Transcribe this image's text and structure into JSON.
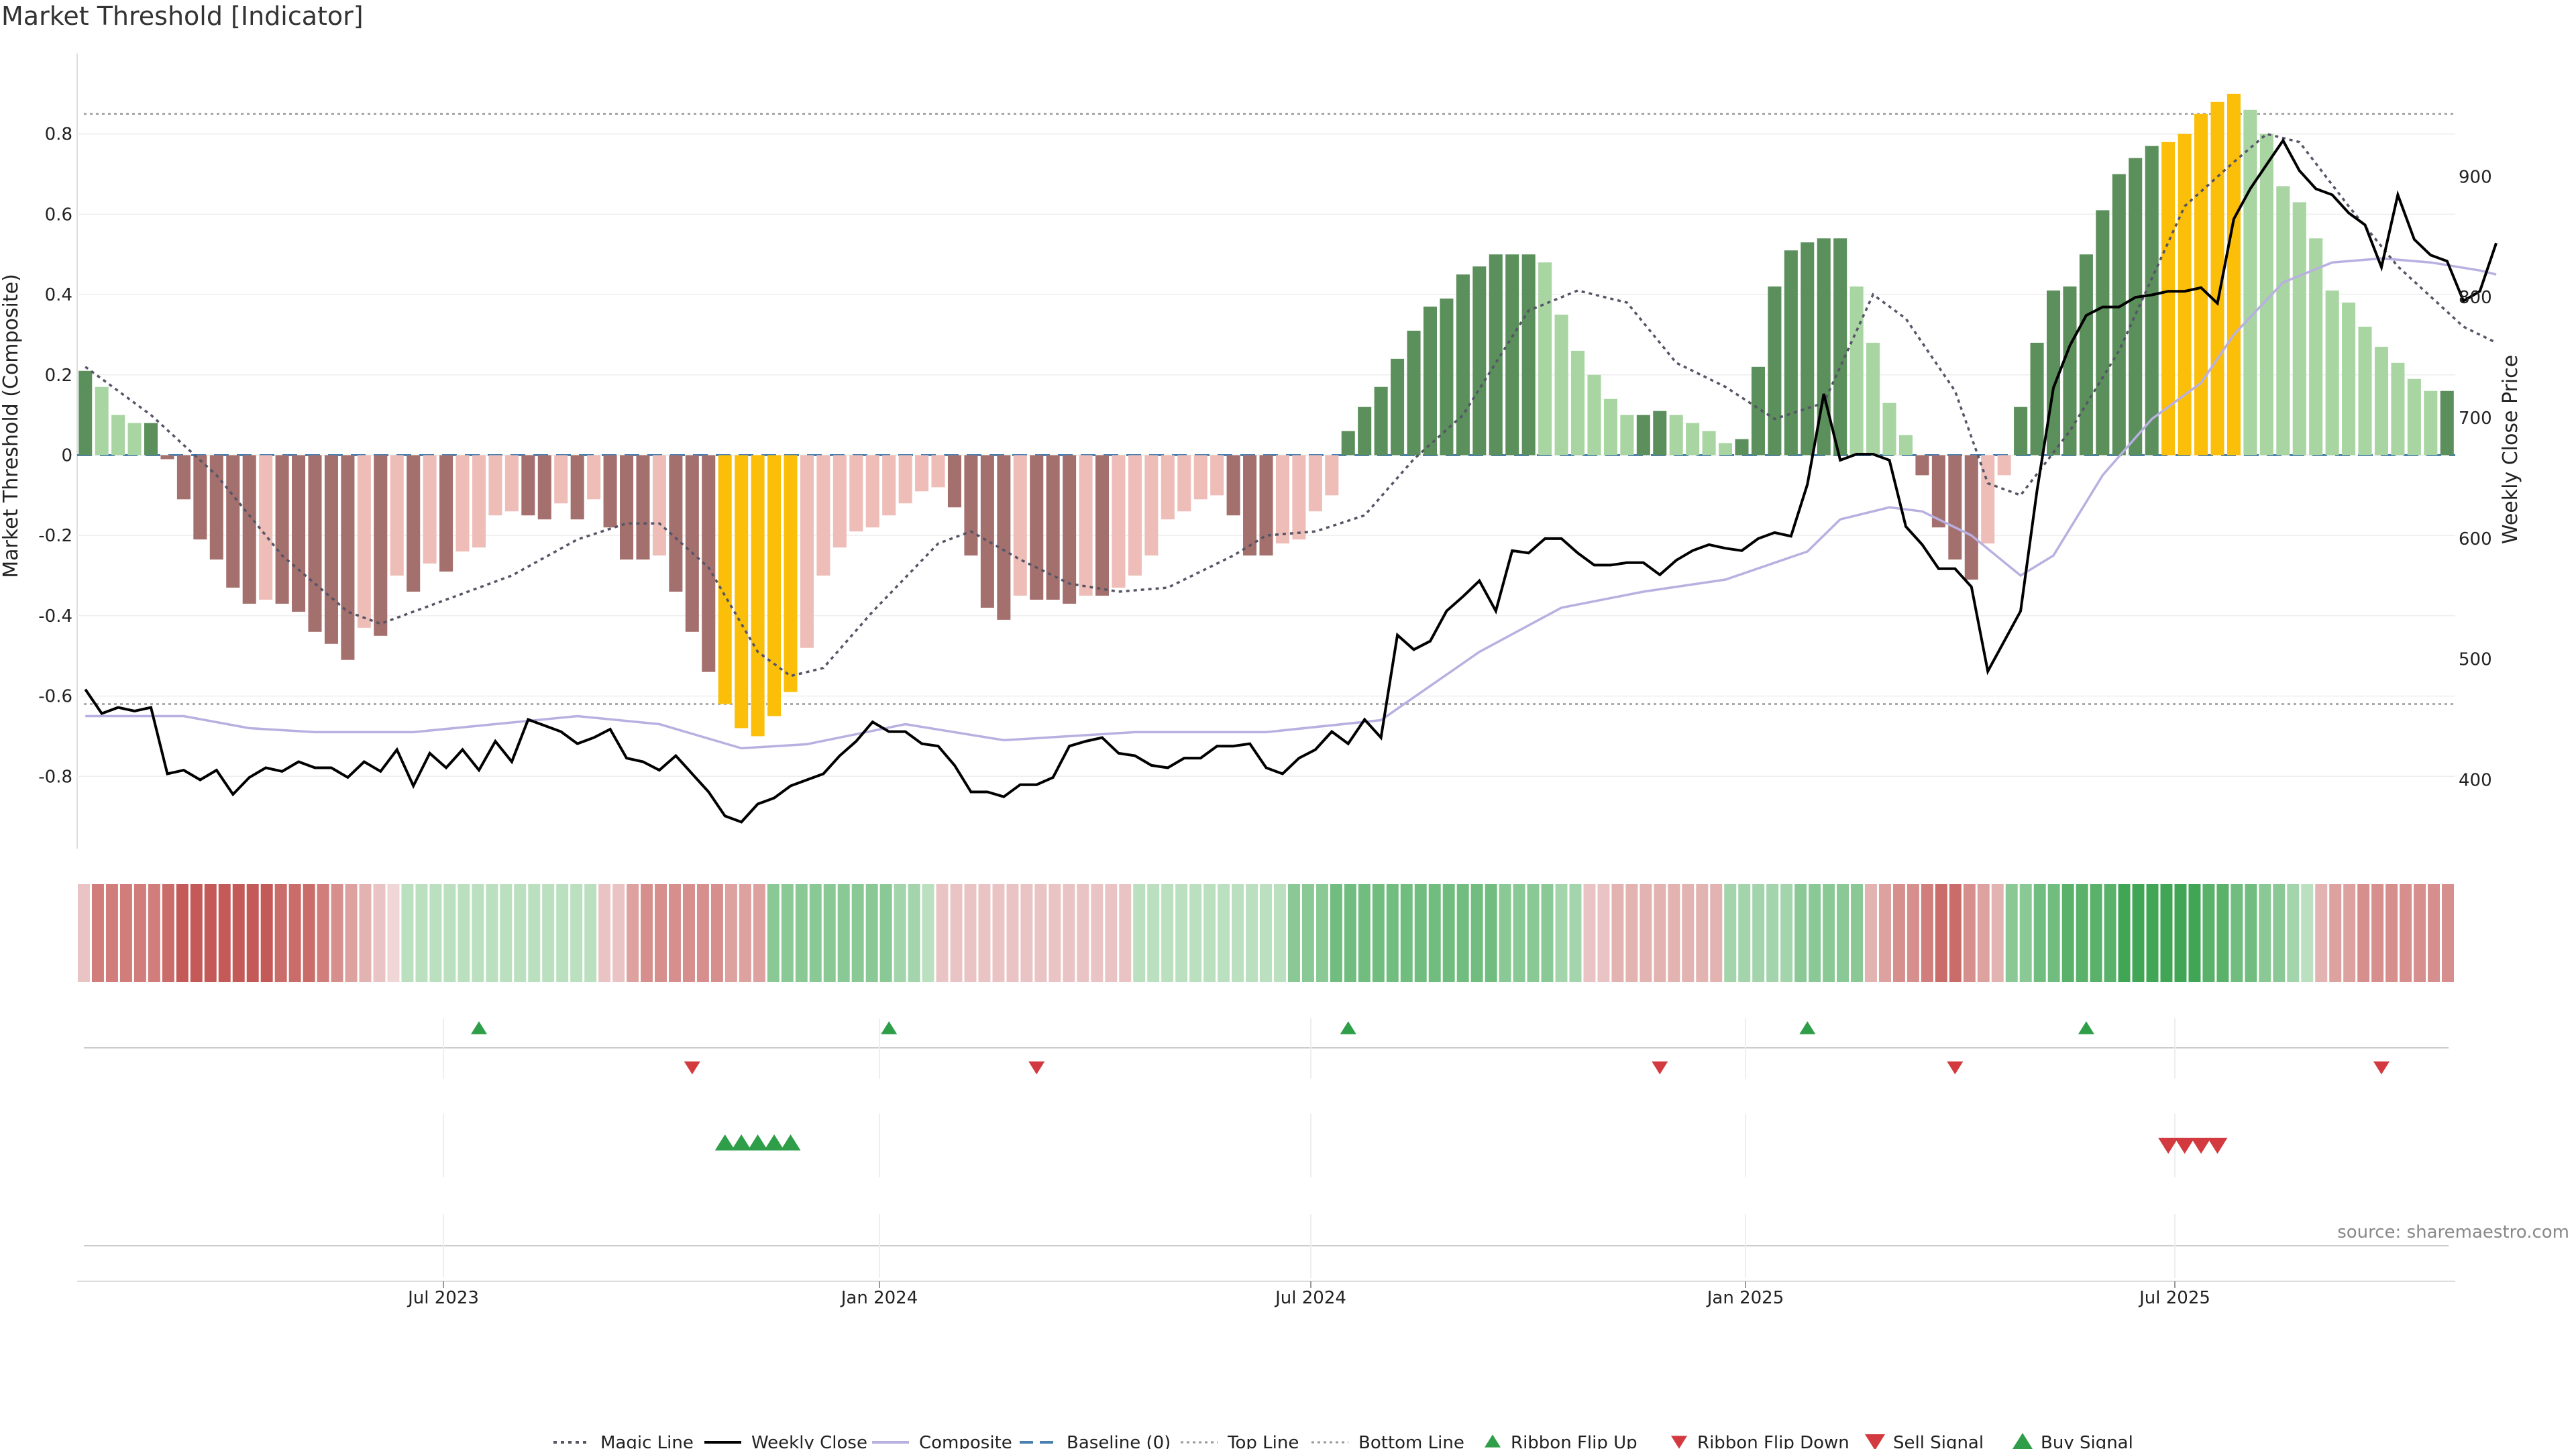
{
  "title": "Market Threshold [Indicator]",
  "source": "source: sharemaestro.com",
  "colors": {
    "bar_green_strong": "#5b8f5b",
    "bar_green_light": "#a8d5a2",
    "bar_red_strong": "#a4706e",
    "bar_red_light": "#eebdb8",
    "bar_extreme": "#fbbf0a",
    "weekly_close": "#000000",
    "composite": "#b8b0e0",
    "magic_line": "#555566",
    "baseline": "#4a80b0",
    "buy": "#2e9e48",
    "sell": "#d33a40"
  },
  "chart_data": {
    "type": "bar",
    "title": "Market Threshold [Indicator]",
    "ylabel": "Market Threshold (Composite)",
    "y2label": "Weekly Close Price",
    "ylim": [
      -0.98,
      1.0
    ],
    "y2lim": [
      343,
      1002
    ],
    "yticks": [
      "0.8",
      "0.6",
      "0.4",
      "0.2",
      "0",
      "-0.2",
      "-0.4",
      "-0.6",
      "-0.8"
    ],
    "y2ticks": [
      "900",
      "800",
      "700",
      "600",
      "500",
      "400"
    ],
    "xticks": [
      "Jul 2023",
      "Jan 2024",
      "Jul 2024",
      "Jan 2025",
      "Jul 2025"
    ],
    "top_line": 0.85,
    "bottom_line": -0.62,
    "composite_bars": [
      0.21,
      0.17,
      0.1,
      0.08,
      0.08,
      -0.01,
      -0.11,
      -0.21,
      -0.26,
      -0.33,
      -0.37,
      -0.36,
      -0.37,
      -0.39,
      -0.44,
      -0.47,
      -0.51,
      -0.43,
      -0.45,
      -0.3,
      -0.34,
      -0.27,
      -0.29,
      -0.24,
      -0.23,
      -0.15,
      -0.14,
      -0.15,
      -0.16,
      -0.12,
      -0.16,
      -0.11,
      -0.18,
      -0.26,
      -0.26,
      -0.25,
      -0.34,
      -0.44,
      -0.54,
      -0.62,
      -0.68,
      -0.7,
      -0.65,
      -0.59,
      -0.48,
      -0.3,
      -0.23,
      -0.19,
      -0.18,
      -0.15,
      -0.12,
      -0.09,
      -0.08,
      -0.13,
      -0.25,
      -0.38,
      -0.41,
      -0.35,
      -0.36,
      -0.36,
      -0.37,
      -0.35,
      -0.35,
      -0.33,
      -0.3,
      -0.25,
      -0.16,
      -0.14,
      -0.11,
      -0.1,
      -0.15,
      -0.25,
      -0.25,
      -0.22,
      -0.21,
      -0.14,
      -0.1,
      0.06,
      0.12,
      0.17,
      0.24,
      0.31,
      0.37,
      0.39,
      0.45,
      0.47,
      0.5,
      0.5,
      0.5,
      0.48,
      0.35,
      0.26,
      0.2,
      0.14,
      0.1,
      0.1,
      0.11,
      0.1,
      0.08,
      0.06,
      0.03,
      0.04,
      0.22,
      0.42,
      0.51,
      0.53,
      0.54,
      0.54,
      0.42,
      0.28,
      0.13,
      0.05,
      -0.05,
      -0.18,
      -0.26,
      -0.31,
      -0.22,
      -0.05,
      0.12,
      0.28,
      0.41,
      0.42,
      0.5,
      0.61,
      0.7,
      0.74,
      0.77,
      0.78,
      0.8,
      0.85,
      0.88,
      0.9,
      0.86,
      0.8,
      0.67,
      0.63,
      0.54,
      0.41,
      0.38,
      0.32,
      0.27,
      0.23,
      0.19,
      0.16,
      0.16
    ],
    "extreme_ranges": [
      [
        39,
        43
      ],
      [
        127,
        131
      ]
    ],
    "ribbon_scores": [
      -0.2,
      -0.6,
      -0.6,
      -0.6,
      -0.6,
      -0.6,
      -0.7,
      -0.8,
      -0.8,
      -0.8,
      -0.8,
      -0.8,
      -0.8,
      -0.8,
      -0.7,
      -0.7,
      -0.7,
      -0.6,
      -0.5,
      -0.4,
      -0.3,
      -0.2,
      -0.1,
      0.3,
      0.3,
      0.3,
      0.3,
      0.3,
      0.3,
      0.3,
      0.3,
      0.3,
      0.3,
      0.3,
      0.3,
      0.3,
      0.3,
      -0.2,
      -0.2,
      -0.4,
      -0.5,
      -0.5,
      -0.5,
      -0.5,
      -0.5,
      -0.5,
      -0.4,
      -0.4,
      -0.4,
      0.5,
      0.5,
      0.5,
      0.5,
      0.5,
      0.5,
      0.5,
      0.5,
      0.5,
      0.4,
      0.4,
      0.3,
      -0.2,
      -0.2,
      -0.2,
      -0.2,
      -0.2,
      -0.2,
      -0.2,
      -0.2,
      -0.2,
      -0.2,
      -0.2,
      -0.2,
      -0.2,
      -0.2,
      0.3,
      0.3,
      0.3,
      0.3,
      0.3,
      0.3,
      0.3,
      0.3,
      0.3,
      0.3,
      0.3,
      0.5,
      0.5,
      0.5,
      0.6,
      0.6,
      0.6,
      0.6,
      0.6,
      0.6,
      0.6,
      0.6,
      0.6,
      0.6,
      0.6,
      0.6,
      0.5,
      0.5,
      0.5,
      0.5,
      0.4,
      0.4,
      -0.2,
      -0.2,
      -0.3,
      -0.3,
      -0.3,
      -0.3,
      -0.3,
      -0.3,
      -0.3,
      -0.3,
      0.4,
      0.4,
      0.4,
      0.4,
      0.4,
      0.5,
      0.5,
      0.5,
      0.5,
      0.5,
      -0.3,
      -0.4,
      -0.5,
      -0.5,
      -0.6,
      -0.7,
      -0.7,
      -0.5,
      -0.4,
      -0.3,
      0.5,
      0.5,
      0.6,
      0.6,
      0.7,
      0.7,
      0.7,
      0.7,
      0.8,
      0.8,
      0.8,
      0.8,
      0.8,
      0.8,
      0.7,
      0.7,
      0.6,
      0.6,
      0.5,
      0.5,
      0.4,
      0.3,
      -0.3,
      -0.4,
      -0.4,
      -0.5,
      -0.5,
      -0.5,
      -0.5,
      -0.5,
      -0.5,
      -0.5
    ],
    "ribbon_flip_up": [
      24,
      49,
      77,
      105,
      122
    ],
    "ribbon_flip_down": [
      37,
      58,
      96,
      114,
      140
    ],
    "buy_signals": [
      39,
      40,
      41,
      42,
      43
    ],
    "sell_signals": [
      127,
      128,
      129,
      130
    ],
    "weekly_close": [
      [
        0.5,
        475
      ],
      [
        1.5,
        455
      ],
      [
        2.5,
        460
      ],
      [
        3.5,
        457
      ],
      [
        4.5,
        460
      ],
      [
        5.5,
        405
      ],
      [
        6.5,
        408
      ],
      [
        7.5,
        400
      ],
      [
        8.5,
        408
      ],
      [
        9.5,
        388
      ],
      [
        10.5,
        402
      ],
      [
        11.5,
        410
      ],
      [
        12.5,
        407
      ],
      [
        13.5,
        415
      ],
      [
        14.5,
        410
      ],
      [
        15.5,
        410
      ],
      [
        16.5,
        402
      ],
      [
        17.5,
        415
      ],
      [
        18.5,
        407
      ],
      [
        19.5,
        425
      ],
      [
        20.5,
        395
      ],
      [
        21.5,
        422
      ],
      [
        22.5,
        410
      ],
      [
        23.5,
        425
      ],
      [
        24.5,
        408
      ],
      [
        25.5,
        432
      ],
      [
        26.5,
        415
      ],
      [
        27.5,
        450
      ],
      [
        28.5,
        445
      ],
      [
        29.5,
        440
      ],
      [
        30.5,
        430
      ],
      [
        31.5,
        435
      ],
      [
        32.5,
        442
      ],
      [
        33.5,
        418
      ],
      [
        34.5,
        415
      ],
      [
        35.5,
        408
      ],
      [
        36.5,
        420
      ],
      [
        37.5,
        405
      ],
      [
        38.5,
        390
      ],
      [
        39.5,
        370
      ],
      [
        40.5,
        365
      ],
      [
        41.5,
        380
      ],
      [
        42.5,
        385
      ],
      [
        43.5,
        395
      ],
      [
        44.5,
        400
      ],
      [
        45.5,
        405
      ],
      [
        46.5,
        420
      ],
      [
        47.5,
        432
      ],
      [
        48.5,
        448
      ],
      [
        49.5,
        440
      ],
      [
        50.5,
        440
      ],
      [
        51.5,
        430
      ],
      [
        52.5,
        428
      ],
      [
        53.5,
        412
      ],
      [
        54.5,
        390
      ],
      [
        55.5,
        390
      ],
      [
        56.5,
        386
      ],
      [
        57.5,
        396
      ],
      [
        58.5,
        396
      ],
      [
        59.5,
        402
      ],
      [
        60.5,
        428
      ],
      [
        61.5,
        432
      ],
      [
        62.5,
        435
      ],
      [
        63.5,
        422
      ],
      [
        64.5,
        420
      ],
      [
        65.5,
        412
      ],
      [
        66.5,
        410
      ],
      [
        67.5,
        418
      ],
      [
        68.5,
        418
      ],
      [
        69.5,
        428
      ],
      [
        70.5,
        428
      ],
      [
        71.5,
        430
      ],
      [
        72.5,
        410
      ],
      [
        73.5,
        405
      ],
      [
        74.5,
        418
      ],
      [
        75.5,
        425
      ],
      [
        76.5,
        440
      ],
      [
        77.5,
        430
      ],
      [
        78.5,
        450
      ],
      [
        79.5,
        435
      ],
      [
        80.5,
        520
      ],
      [
        81.5,
        508
      ],
      [
        82.5,
        515
      ],
      [
        83.5,
        540
      ],
      [
        84.5,
        552
      ],
      [
        85.5,
        565
      ],
      [
        86.5,
        540
      ],
      [
        87.5,
        590
      ],
      [
        88.5,
        588
      ],
      [
        89.5,
        600
      ],
      [
        90.5,
        600
      ],
      [
        91.5,
        588
      ],
      [
        92.5,
        578
      ],
      [
        93.5,
        578
      ],
      [
        94.5,
        580
      ],
      [
        95.5,
        580
      ],
      [
        96.5,
        570
      ],
      [
        97.5,
        582
      ],
      [
        98.5,
        590
      ],
      [
        99.5,
        595
      ],
      [
        100.5,
        592
      ],
      [
        101.5,
        590
      ],
      [
        102.5,
        600
      ],
      [
        103.5,
        605
      ],
      [
        104.5,
        602
      ],
      [
        105.5,
        645
      ],
      [
        106.5,
        720
      ],
      [
        107.5,
        665
      ],
      [
        108.5,
        670
      ],
      [
        109.5,
        670
      ],
      [
        110.5,
        665
      ],
      [
        111.5,
        610
      ],
      [
        112.5,
        595
      ],
      [
        113.5,
        575
      ],
      [
        114.5,
        575
      ],
      [
        115.5,
        560
      ],
      [
        116.5,
        490
      ],
      [
        117.5,
        515
      ],
      [
        118.5,
        540
      ],
      [
        119.5,
        640
      ],
      [
        120.5,
        725
      ],
      [
        121.5,
        760
      ],
      [
        122.5,
        785
      ],
      [
        123.5,
        792
      ],
      [
        124.5,
        792
      ],
      [
        125.5,
        800
      ],
      [
        126.5,
        802
      ],
      [
        127.5,
        805
      ],
      [
        128.5,
        805
      ],
      [
        129.5,
        808
      ],
      [
        130.5,
        795
      ],
      [
        131.5,
        865
      ],
      [
        132.5,
        890
      ],
      [
        133.5,
        910
      ],
      [
        134.5,
        930
      ],
      [
        135.5,
        905
      ],
      [
        136.5,
        890
      ],
      [
        137.5,
        885
      ],
      [
        138.5,
        870
      ],
      [
        139.5,
        860
      ],
      [
        140.5,
        825
      ],
      [
        141.5,
        885
      ],
      [
        142.5,
        848
      ],
      [
        143.5,
        835
      ],
      [
        144.5,
        830
      ],
      [
        145.5,
        797
      ],
      [
        146.5,
        805
      ],
      [
        147.5,
        845
      ]
    ],
    "composite_line": [
      [
        0,
        -0.65
      ],
      [
        6,
        -0.65
      ],
      [
        10,
        -0.68
      ],
      [
        14,
        -0.69
      ],
      [
        20,
        -0.69
      ],
      [
        30,
        -0.65
      ],
      [
        35,
        -0.67
      ],
      [
        40,
        -0.73
      ],
      [
        44,
        -0.72
      ],
      [
        50,
        -0.67
      ],
      [
        56,
        -0.71
      ],
      [
        60,
        -0.7
      ],
      [
        64,
        -0.69
      ],
      [
        72,
        -0.69
      ],
      [
        79,
        -0.66
      ],
      [
        85,
        -0.49
      ],
      [
        90,
        -0.38
      ],
      [
        95,
        -0.34
      ],
      [
        100,
        -0.31
      ],
      [
        105,
        -0.24
      ],
      [
        107,
        -0.16
      ],
      [
        110,
        -0.13
      ],
      [
        112,
        -0.14
      ],
      [
        115,
        -0.2
      ],
      [
        118,
        -0.3
      ],
      [
        120,
        -0.25
      ],
      [
        123,
        -0.05
      ],
      [
        126,
        0.09
      ],
      [
        129,
        0.18
      ],
      [
        131,
        0.3
      ],
      [
        134,
        0.43
      ],
      [
        137,
        0.48
      ],
      [
        140,
        0.49
      ],
      [
        143,
        0.48
      ],
      [
        146,
        0.46
      ],
      [
        147,
        0.45
      ]
    ],
    "magic_line": [
      [
        0,
        0.22
      ],
      [
        4,
        0.1
      ],
      [
        8,
        -0.05
      ],
      [
        12,
        -0.25
      ],
      [
        16,
        -0.39
      ],
      [
        18,
        -0.42
      ],
      [
        22,
        -0.36
      ],
      [
        26,
        -0.3
      ],
      [
        30,
        -0.21
      ],
      [
        33,
        -0.17
      ],
      [
        35,
        -0.17
      ],
      [
        38,
        -0.28
      ],
      [
        41,
        -0.49
      ],
      [
        43,
        -0.55
      ],
      [
        45,
        -0.53
      ],
      [
        48,
        -0.39
      ],
      [
        52,
        -0.22
      ],
      [
        54,
        -0.19
      ],
      [
        57,
        -0.26
      ],
      [
        60,
        -0.32
      ],
      [
        63,
        -0.34
      ],
      [
        66,
        -0.33
      ],
      [
        70,
        -0.25
      ],
      [
        72,
        -0.2
      ],
      [
        75,
        -0.19
      ],
      [
        78,
        -0.15
      ],
      [
        81,
        -0.01
      ],
      [
        84,
        0.1
      ],
      [
        88,
        0.36
      ],
      [
        91,
        0.41
      ],
      [
        94,
        0.38
      ],
      [
        97,
        0.23
      ],
      [
        100,
        0.17
      ],
      [
        103,
        0.09
      ],
      [
        106,
        0.13
      ],
      [
        109,
        0.4
      ],
      [
        111,
        0.34
      ],
      [
        114,
        0.16
      ],
      [
        116,
        -0.07
      ],
      [
        118,
        -0.1
      ],
      [
        121,
        0.06
      ],
      [
        124,
        0.26
      ],
      [
        128,
        0.62
      ],
      [
        131,
        0.73
      ],
      [
        133,
        0.8
      ],
      [
        135,
        0.78
      ],
      [
        138,
        0.62
      ],
      [
        141,
        0.47
      ],
      [
        145,
        0.32
      ],
      [
        147,
        0.28
      ]
    ]
  },
  "legend": [
    {
      "label": "Magic Line",
      "icon": "dotted-line-icon"
    },
    {
      "label": "Weekly Close",
      "icon": "solid-line-icon"
    },
    {
      "label": "Composite",
      "icon": "solid-line-icon"
    },
    {
      "label": "Baseline (0)",
      "icon": "dashed-line-icon"
    },
    {
      "label": "Top Line",
      "icon": "dotted-line-icon"
    },
    {
      "label": "Bottom Line",
      "icon": "dotted-line-icon"
    },
    {
      "label": "Ribbon Flip Up",
      "icon": "triangle-up-icon"
    },
    {
      "label": "Ribbon Flip Down",
      "icon": "triangle-down-icon"
    },
    {
      "label": "Sell Signal",
      "icon": "triangle-down-icon"
    },
    {
      "label": "Buy Signal",
      "icon": "triangle-up-icon"
    }
  ]
}
